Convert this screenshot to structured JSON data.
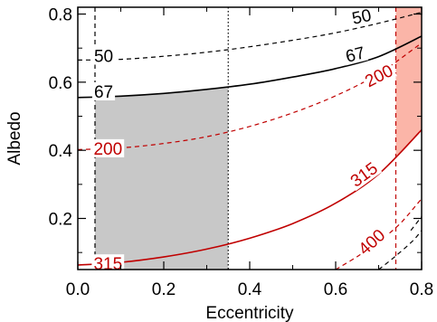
{
  "chart_data": {
    "type": "line",
    "title": "",
    "xlabel": "Eccentricity",
    "ylabel": "Albedo",
    "xlim": [
      0.0,
      0.8
    ],
    "ylim": [
      0.05,
      0.82
    ],
    "x_ticks": [
      "0.0",
      "0.2",
      "0.4",
      "0.6",
      "0.8"
    ],
    "x_tick_values": [
      0.0,
      0.2,
      0.4,
      0.6,
      0.8
    ],
    "y_ticks": [
      "0.2",
      "0.4",
      "0.6",
      "0.8"
    ],
    "y_tick_values": [
      0.2,
      0.4,
      0.6,
      0.8
    ],
    "regions": [
      {
        "color": "#c8c8c8",
        "x": [
          0.04,
          0.35
        ],
        "y_to_curve": "67"
      },
      {
        "color": "#fbb5a8",
        "x": [
          0.74,
          0.8
        ],
        "y_from_curve": "315",
        "y_to_top": true
      }
    ],
    "vertical_lines": [
      {
        "x": 0.04,
        "style": "dashed",
        "color": "#000000"
      },
      {
        "x": 0.35,
        "style": "dotted",
        "color": "#000000"
      },
      {
        "x": 0.74,
        "style": "dashed",
        "color": "#c00000"
      }
    ],
    "series": [
      {
        "name": "50",
        "color": "#000000",
        "style": "dashed",
        "x": [
          0.0,
          0.1,
          0.2,
          0.3,
          0.4,
          0.5,
          0.6,
          0.7,
          0.8
        ],
        "y": [
          0.665,
          0.667,
          0.676,
          0.688,
          0.704,
          0.723,
          0.745,
          0.773,
          0.805
        ]
      },
      {
        "name": "67",
        "color": "#000000",
        "style": "solid",
        "x": [
          0.0,
          0.1,
          0.2,
          0.3,
          0.4,
          0.5,
          0.6,
          0.7,
          0.8
        ],
        "y": [
          0.555,
          0.559,
          0.567,
          0.579,
          0.594,
          0.615,
          0.64,
          0.675,
          0.735
        ]
      },
      {
        "name": "200",
        "color": "#c00000",
        "style": "dashed",
        "x": [
          0.0,
          0.1,
          0.2,
          0.3,
          0.4,
          0.5,
          0.6,
          0.7,
          0.8
        ],
        "y": [
          0.402,
          0.407,
          0.42,
          0.44,
          0.47,
          0.51,
          0.56,
          0.625,
          0.715
        ]
      },
      {
        "name": "315",
        "color": "#c00000",
        "style": "solid",
        "x": [
          0.0,
          0.1,
          0.2,
          0.3,
          0.4,
          0.5,
          0.6,
          0.7,
          0.8
        ],
        "y": [
          0.063,
          0.071,
          0.087,
          0.11,
          0.142,
          0.185,
          0.245,
          0.33,
          0.46
        ]
      },
      {
        "name": "400",
        "color": "#c00000",
        "style": "dashed",
        "x": [
          0.6,
          0.65,
          0.7,
          0.75,
          0.8
        ],
        "y": [
          0.05,
          0.088,
          0.132,
          0.185,
          0.258
        ]
      },
      {
        "name": "",
        "color": "#000000",
        "style": "dashed",
        "x": [
          0.7,
          0.74,
          0.78,
          0.8
        ],
        "y": [
          0.05,
          0.09,
          0.135,
          0.165
        ]
      },
      {
        "name": "",
        "color": "#000000",
        "style": "dashed",
        "x": [
          0.775,
          0.8
        ],
        "y": [
          0.165,
          0.205
        ]
      }
    ],
    "contour_labels": [
      {
        "text": "50",
        "color": "#000000",
        "x": 0.06,
        "y": 0.678,
        "angle": 0
      },
      {
        "text": "50",
        "color": "#000000",
        "x": 0.66,
        "y": 0.794,
        "angle": -12
      },
      {
        "text": "67",
        "color": "#000000",
        "x": 0.06,
        "y": 0.573,
        "angle": 0
      },
      {
        "text": "67",
        "color": "#000000",
        "x": 0.645,
        "y": 0.683,
        "angle": -14
      },
      {
        "text": "200",
        "color": "#c00000",
        "x": 0.07,
        "y": 0.406,
        "angle": 0
      },
      {
        "text": "200",
        "color": "#c00000",
        "x": 0.7,
        "y": 0.62,
        "angle": -27
      },
      {
        "text": "315",
        "color": "#c00000",
        "x": 0.07,
        "y": 0.068,
        "angle": 0
      },
      {
        "text": "315",
        "color": "#c00000",
        "x": 0.665,
        "y": 0.33,
        "angle": -36
      },
      {
        "text": "400",
        "color": "#c00000",
        "x": 0.683,
        "y": 0.132,
        "angle": -42
      }
    ]
  }
}
